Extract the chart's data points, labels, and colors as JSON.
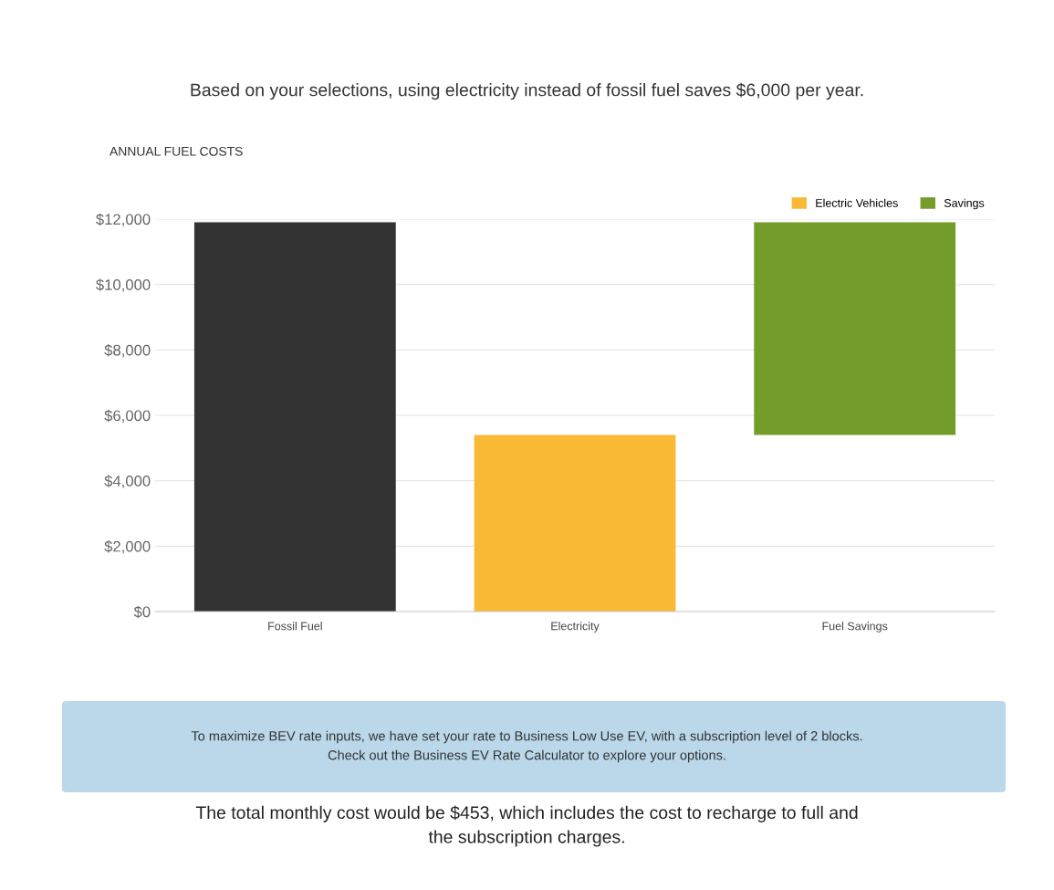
{
  "chart_data": {
    "type": "bar",
    "title": "Based on your selections, using electricity instead of fossil fuel saves $6,000 per year.",
    "subtitle": "ANNUAL FUEL COSTS",
    "categories": [
      "Fossil Fuel",
      "Electricity",
      "Fuel Savings"
    ],
    "series": [
      {
        "color": "#333333",
        "values": [
          11900,
          null,
          null
        ]
      },
      {
        "name": "Electric Vehicles",
        "color": "#f9b935",
        "values": [
          null,
          5400,
          null
        ]
      },
      {
        "name": "Savings",
        "color": "#739c2a",
        "values": [
          null,
          null,
          6500
        ],
        "base": [
          null,
          null,
          5400
        ]
      }
    ],
    "ylim": [
      0,
      12000
    ],
    "yticks": [
      {
        "value": 0,
        "label": "$0"
      },
      {
        "value": 2000,
        "label": "$2,000"
      },
      {
        "value": 4000,
        "label": "$4,000"
      },
      {
        "value": 6000,
        "label": "$6,000"
      },
      {
        "value": 8000,
        "label": "$8,000"
      },
      {
        "value": 10000,
        "label": "$10,000"
      },
      {
        "value": 12000,
        "label": "$12,000"
      }
    ],
    "grid": "y",
    "legend": "top right",
    "annotations": [
      "To maximize BEV rate inputs, we have set your rate to Business Low Use EV, with a subscription level of 2 blocks.\nCheck out the Business EV Rate Calculator to explore your options.",
      "The total monthly cost would be $453, which includes the cost to recharge to full and\nthe subscription charges."
    ]
  }
}
